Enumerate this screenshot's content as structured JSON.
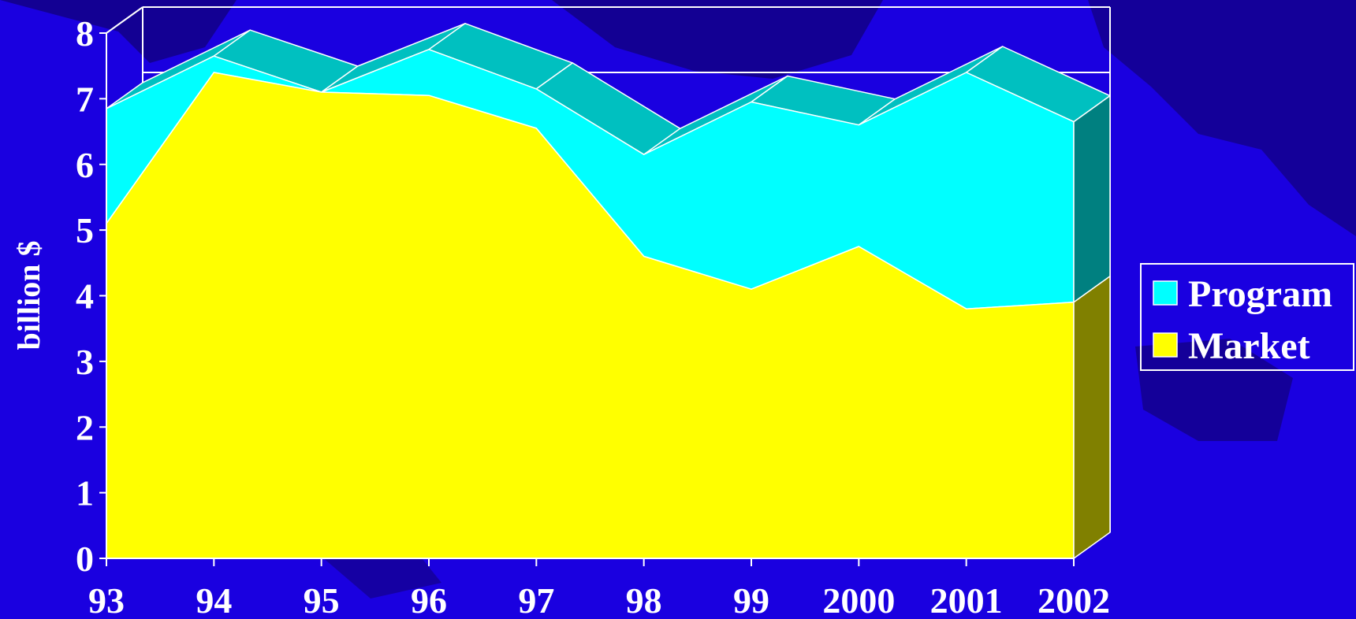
{
  "chart_data": {
    "type": "area",
    "stacked": true,
    "three_d": true,
    "title": "",
    "xlabel": "",
    "ylabel": "billion $",
    "categories": [
      "93",
      "94",
      "95",
      "96",
      "97",
      "98",
      "99",
      "2000",
      "2001",
      "2002"
    ],
    "ylim": [
      0,
      8
    ],
    "yticks": [
      "0",
      "1",
      "2",
      "3",
      "4",
      "5",
      "6",
      "7",
      "8"
    ],
    "grid": false,
    "legend_position": "right",
    "series": [
      {
        "name": "Market",
        "values": [
          5.1,
          7.4,
          7.1,
          7.05,
          6.55,
          4.6,
          4.1,
          4.75,
          3.8,
          3.9
        ],
        "color": "#ffff00",
        "side_color": "#808000"
      },
      {
        "name": "Program",
        "values": [
          1.75,
          0.25,
          0.0,
          0.7,
          0.6,
          1.55,
          2.85,
          1.85,
          3.6,
          2.75
        ],
        "color": "#00ffff",
        "side_color": "#008080",
        "top_color": "#00c0c0"
      }
    ],
    "legend": [
      {
        "label": "Program",
        "color": "#00ffff"
      },
      {
        "label": "Market",
        "color": "#ffff00"
      }
    ]
  }
}
